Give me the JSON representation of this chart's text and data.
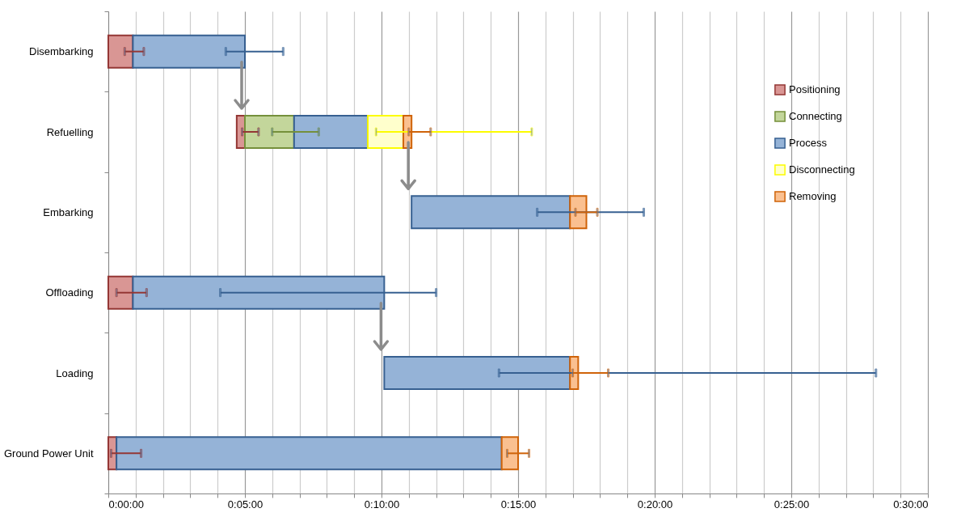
{
  "chart_data": {
    "type": "bar",
    "orientation": "horizontal",
    "categories": [
      "Disembarking",
      "Refuelling",
      "Embarking",
      "Offloading",
      "Loading",
      "Ground Power Unit"
    ],
    "series": [
      {
        "name": "Positioning",
        "color": "#d99694",
        "base": [
          0,
          4.7,
          null,
          0,
          null,
          0
        ],
        "values": [
          0.9,
          0.3,
          null,
          0.9,
          null,
          0.3
        ],
        "errors": [
          [
            0.6,
            1.3
          ],
          [
            4.9,
            5.5
          ],
          null,
          [
            0.3,
            1.4
          ],
          null,
          [
            0.1,
            1.2
          ]
        ]
      },
      {
        "name": "Connecting",
        "color": "#c3d69b",
        "base": [
          null,
          5.0,
          null,
          null,
          null,
          null
        ],
        "values": [
          null,
          1.8,
          null,
          null,
          null,
          null
        ],
        "errors": [
          null,
          [
            6.0,
            7.7
          ],
          null,
          null,
          null,
          null
        ]
      },
      {
        "name": "Process",
        "color": "#95b3d7",
        "base": [
          0.9,
          6.8,
          11.1,
          0.9,
          10.1,
          0.3
        ],
        "values": [
          4.1,
          2.7,
          5.8,
          9.2,
          6.8,
          14.1
        ],
        "errors": [
          [
            4.3,
            6.4
          ],
          null,
          [
            15.7,
            19.6
          ],
          [
            4.1,
            12.0
          ],
          [
            14.3,
            28.1
          ],
          null
        ]
      },
      {
        "name": "Disconnecting",
        "color": "#ffffcc",
        "base": [
          null,
          9.5,
          null,
          null,
          null,
          null
        ],
        "values": [
          null,
          1.3,
          null,
          null,
          null,
          null
        ],
        "errors": [
          null,
          [
            9.8,
            15.5
          ],
          null,
          null,
          null,
          null
        ]
      },
      {
        "name": "Removing",
        "color": "#fac090",
        "base": [
          null,
          10.8,
          16.9,
          null,
          16.9,
          14.4
        ],
        "values": [
          null,
          0.3,
          0.6,
          null,
          0.3,
          0.6
        ],
        "errors": [
          null,
          [
            11.0,
            11.8
          ],
          [
            17.1,
            17.9
          ],
          null,
          [
            17.0,
            18.3
          ],
          [
            14.6,
            15.4
          ]
        ]
      }
    ],
    "xlim": [
      0,
      30
    ],
    "xticks": [
      {
        "value": 0,
        "label": "0:00:00"
      },
      {
        "value": 1,
        "label": null
      },
      {
        "value": 2,
        "label": null
      },
      {
        "value": 3,
        "label": null
      },
      {
        "value": 4,
        "label": null
      },
      {
        "value": 5,
        "label": "0:05:00"
      },
      {
        "value": 6,
        "label": null
      },
      {
        "value": 7,
        "label": null
      },
      {
        "value": 8,
        "label": null
      },
      {
        "value": 9,
        "label": null
      },
      {
        "value": 10,
        "label": "0:10:00"
      },
      {
        "value": 11,
        "label": null
      },
      {
        "value": 12,
        "label": null
      },
      {
        "value": 13,
        "label": null
      },
      {
        "value": 14,
        "label": null
      },
      {
        "value": 15,
        "label": "0:15:00"
      },
      {
        "value": 16,
        "label": null
      },
      {
        "value": 17,
        "label": null
      },
      {
        "value": 18,
        "label": null
      },
      {
        "value": 19,
        "label": null
      },
      {
        "value": 20,
        "label": "0:20:00"
      },
      {
        "value": 21,
        "label": null
      },
      {
        "value": 22,
        "label": null
      },
      {
        "value": 23,
        "label": null
      },
      {
        "value": 24,
        "label": null
      },
      {
        "value": 25,
        "label": "0:25:00"
      },
      {
        "value": 26,
        "label": null
      },
      {
        "value": 27,
        "label": null
      },
      {
        "value": 28,
        "label": null
      },
      {
        "value": 29,
        "label": null
      },
      {
        "value": 30,
        "label": "0:30:00"
      }
    ],
    "grid": "x",
    "legend": "top right"
  }
}
